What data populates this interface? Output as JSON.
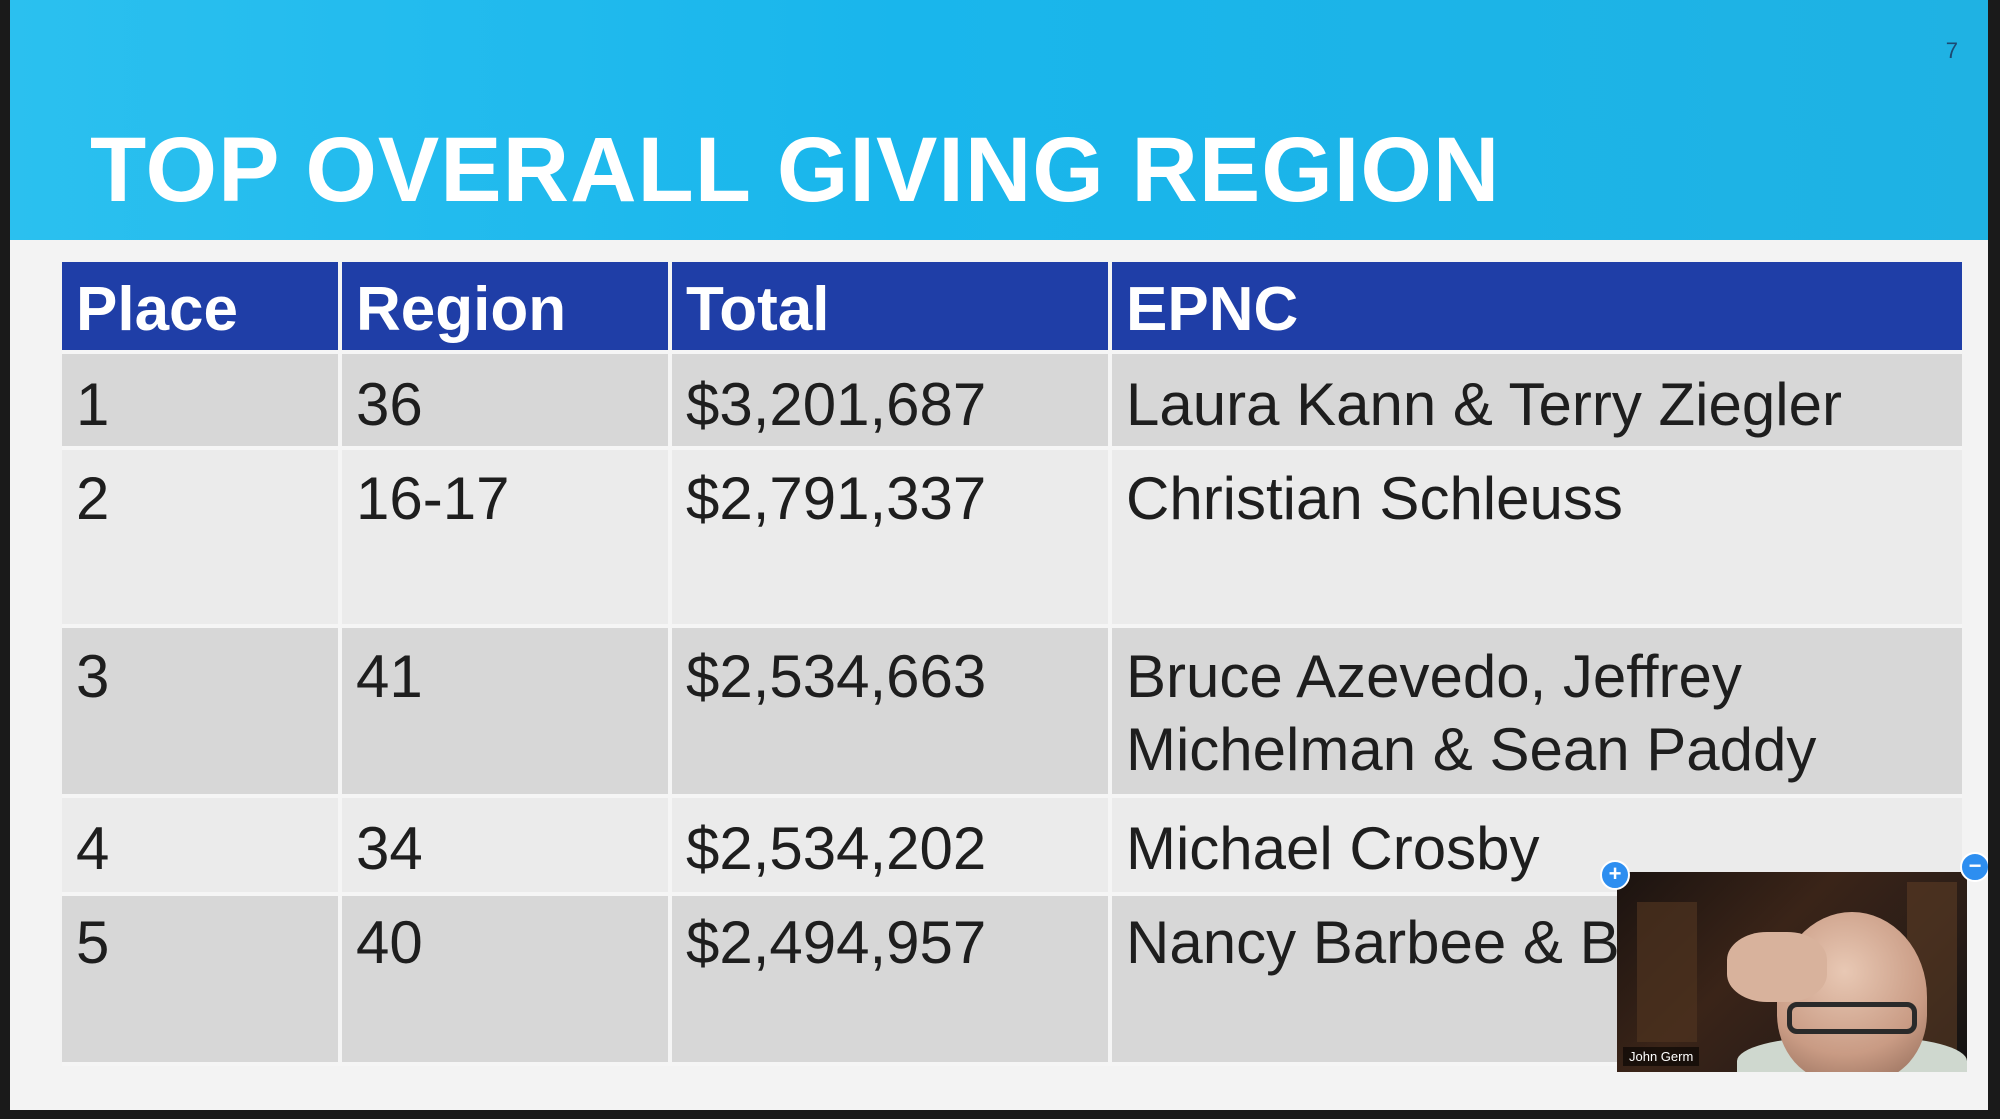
{
  "slide": {
    "page_number": "7",
    "title": "TOP OVERALL GIVING REGION"
  },
  "table": {
    "headers": [
      "Place",
      "Region",
      "Total",
      "EPNC"
    ],
    "rows": [
      {
        "place": "1",
        "region": "36",
        "total": "$3,201,687",
        "epnc": "Laura Kann & Terry Ziegler"
      },
      {
        "place": "2",
        "region": "16-17",
        "total": "$2,791,337",
        "epnc": "Christian Schleuss"
      },
      {
        "place": "3",
        "region": "41",
        "total": "$2,534,663",
        "epnc": "Bruce Azevedo, Jeffrey Michelman & Sean Paddy"
      },
      {
        "place": "4",
        "region": "34",
        "total": "$2,534,202",
        "epnc": "Michael Crosby"
      },
      {
        "place": "5",
        "region": "40",
        "total": "$2,494,957",
        "epnc": "Nancy Barbee & Bonadonna"
      }
    ]
  },
  "video": {
    "participant_name": "John Germ",
    "zoom_in_icon": "plus-icon",
    "zoom_out_icon": "minus-icon",
    "zoom_in_symbol": "+",
    "zoom_out_symbol": "−"
  },
  "colors": {
    "header_band": "#19b6ec",
    "table_header": "#1f3ea7",
    "row_odd": "#d7d7d7",
    "row_even": "#ebebeb",
    "control_button": "#2d8ef0"
  }
}
